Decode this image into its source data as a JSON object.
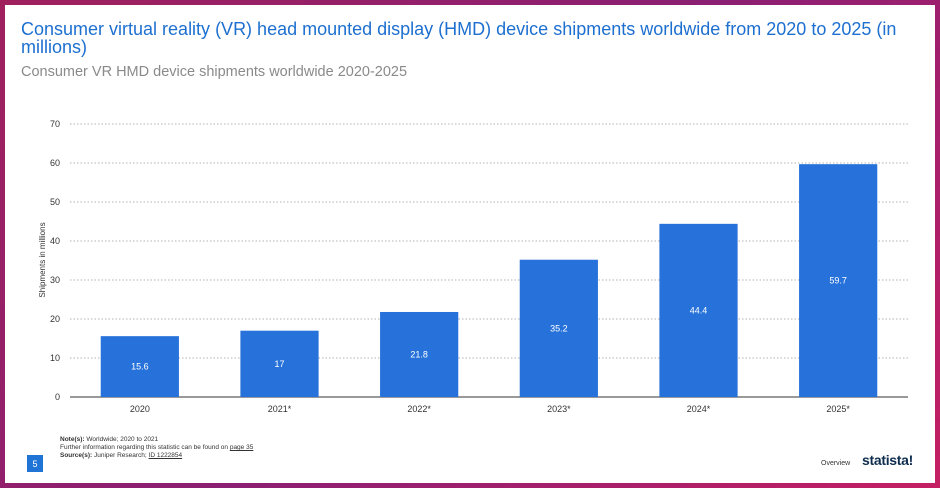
{
  "header": {
    "title": "Consumer virtual reality (VR) head mounted display (HMD) device shipments worldwide from 2020 to 2025 (in millions)",
    "subtitle": "Consumer VR HMD device shipments worldwide 2020-2025"
  },
  "chart_data": {
    "type": "bar",
    "categories": [
      "2020",
      "2021*",
      "2022*",
      "2023*",
      "2024*",
      "2025*"
    ],
    "values": [
      15.6,
      17,
      21.8,
      35.2,
      44.4,
      59.7
    ],
    "value_labels": [
      "15.6",
      "17",
      "21.8",
      "35.2",
      "44.4",
      "59.7"
    ],
    "xlabel": "",
    "ylabel": "Shipments in millions",
    "ylim": [
      0,
      70
    ],
    "yticks": [
      0,
      10,
      20,
      30,
      40,
      50,
      60,
      70
    ],
    "grid": true,
    "bar_color": "#2672da"
  },
  "footer": {
    "notes_label": "Note(s):",
    "notes_text": "Worldwide; 2020 to 2021",
    "further_info": "Further information regarding this statistic can be found on",
    "further_link": "page 35",
    "sources_label": "Source(s):",
    "sources_text": "Juniper Research;",
    "sources_id": "ID 1222854",
    "page_number": "5",
    "overview": "Overview",
    "logo": "statista!"
  }
}
